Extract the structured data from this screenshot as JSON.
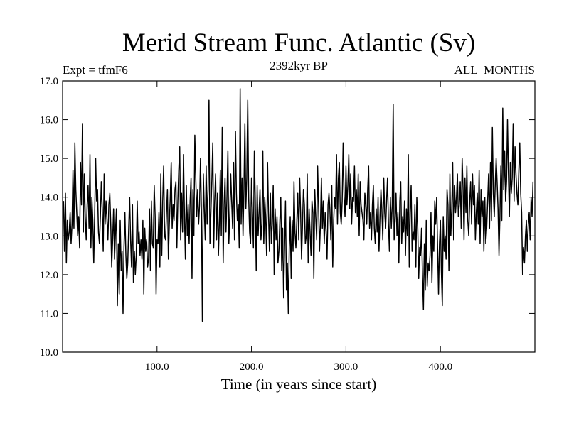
{
  "chart_data": {
    "type": "line",
    "title": "Merid Stream Func. Atlantic (Sv)",
    "subtitle_left": "Expt = tfmF6",
    "subtitle_center": "2392kyr BP",
    "subtitle_right": "ALL_MONTHS",
    "xlabel": "Time (in years since start)",
    "ylabel": "",
    "xlim": [
      0,
      500
    ],
    "ylim": [
      10.0,
      17.0
    ],
    "xticks": [
      100,
      200,
      300,
      400
    ],
    "xtick_labels": [
      "100.0",
      "200.0",
      "300.0",
      "400.0"
    ],
    "yticks": [
      10,
      11,
      12,
      13,
      14,
      15,
      16,
      17
    ],
    "ytick_labels": [
      "10.0",
      "11.0",
      "12.0",
      "13.0",
      "14.0",
      "15.0",
      "16.0",
      "17.0"
    ],
    "series": [
      {
        "name": "Merid Stream Func. Atlantic",
        "x_start": 1,
        "x_step": 1,
        "values": [
          13.9,
          12.6,
          14.1,
          12.3,
          13.4,
          12.9,
          13.1,
          13.6,
          12.8,
          13.3,
          14.7,
          13.2,
          15.4,
          14.2,
          13.6,
          13.0,
          13.5,
          12.7,
          14.9,
          13.8,
          15.9,
          13.1,
          14.6,
          13.5,
          12.9,
          13.8,
          14.3,
          13.2,
          15.1,
          12.7,
          14.0,
          13.4,
          12.3,
          13.6,
          15.0,
          13.9,
          14.2,
          13.1,
          12.8,
          13.5,
          14.4,
          13.7,
          12.6,
          14.6,
          13.3,
          13.9,
          13.4,
          12.9,
          13.8,
          14.1,
          13.3,
          12.2,
          12.9,
          13.7,
          12.4,
          13.1,
          13.7,
          11.2,
          12.8,
          11.5,
          13.4,
          12.1,
          12.6,
          11.0,
          12.7,
          13.6,
          12.5,
          11.9,
          12.3,
          13.2,
          14.0,
          12.9,
          12.2,
          13.8,
          11.8,
          12.6,
          12.0,
          12.5,
          13.9,
          12.8,
          13.1,
          12.5,
          12.9,
          12.4,
          13.4,
          11.5,
          13.2,
          12.6,
          12.9,
          12.2,
          12.4,
          13.7,
          12.1,
          13.9,
          12.8,
          12.7,
          14.3,
          13.5,
          11.5,
          12.9,
          12.8,
          13.6,
          12.2,
          14.6,
          12.5,
          13.9,
          14.8,
          13.0,
          12.9,
          13.6,
          14.2,
          12.4,
          13.3,
          14.0,
          14.9,
          13.2,
          13.8,
          13.4,
          14.2,
          14.4,
          12.7,
          13.9,
          14.7,
          15.3,
          12.9,
          14.1,
          13.1,
          15.1,
          13.6,
          12.4,
          14.3,
          13.0,
          13.8,
          12.8,
          13.9,
          14.5,
          11.9,
          14.2,
          13.0,
          15.6,
          14.5,
          13.5,
          14.2,
          13.3,
          13.8,
          15.0,
          13.6,
          10.8,
          14.6,
          13.7,
          12.9,
          14.8,
          13.3,
          14.2,
          16.5,
          12.8,
          13.6,
          14.4,
          15.4,
          12.7,
          13.9,
          14.6,
          12.9,
          14.1,
          12.5,
          13.4,
          14.7,
          13.0,
          15.8,
          12.3,
          13.8,
          14.5,
          13.1,
          14.0,
          15.2,
          12.8,
          13.5,
          14.6,
          13.9,
          13.2,
          14.9,
          12.9,
          15.7,
          14.1,
          13.4,
          13.8,
          12.7,
          16.8,
          13.3,
          14.5,
          13.0,
          14.2,
          15.9,
          13.7,
          14.5,
          16.5,
          14.0,
          13.1,
          12.8,
          14.5,
          13.6,
          12.7,
          15.2,
          13.9,
          12.1,
          14.3,
          13.0,
          13.6,
          14.2,
          12.9,
          13.3,
          15.2,
          12.8,
          14.0,
          13.5,
          12.5,
          14.9,
          13.6,
          12.6,
          14.1,
          12.8,
          13.3,
          14.3,
          12.0,
          13.7,
          12.9,
          13.5,
          12.3,
          12.6,
          13.4,
          14.0,
          12.1,
          13.2,
          11.4,
          12.7,
          13.9,
          11.6,
          12.3,
          11.0,
          12.7,
          13.5,
          11.9,
          13.4,
          12.6,
          14.4,
          13.1,
          12.7,
          13.4,
          14.1,
          12.9,
          14.5,
          13.6,
          12.4,
          13.3,
          14.2,
          13.8,
          12.8,
          13.0,
          14.6,
          12.3,
          13.7,
          13.1,
          12.5,
          13.9,
          13.6,
          11.9,
          14.2,
          13.5,
          12.9,
          14.8,
          13.8,
          12.6,
          13.3,
          14.5,
          13.2,
          13.9,
          12.8,
          13.6,
          13.1,
          12.4,
          13.8,
          14.1,
          13.7,
          12.9,
          14.3,
          12.2,
          13.4,
          14.0,
          13.7,
          15.1,
          13.3,
          14.5,
          14.9,
          13.6,
          13.3,
          13.9,
          15.4,
          14.0,
          13.5,
          14.8,
          13.8,
          14.3,
          15.1,
          13.7,
          14.6,
          13.3,
          14.0,
          13.9,
          14.8,
          13.6,
          14.2,
          13.5,
          14.6,
          13.0,
          14.4,
          13.8,
          13.6,
          13.4,
          12.9,
          14.1,
          13.8,
          13.3,
          14.2,
          14.8,
          13.2,
          13.6,
          12.9,
          13.8,
          14.3,
          13.2,
          12.8,
          13.7,
          13.1,
          14.0,
          12.6,
          13.5,
          14.2,
          13.7,
          12.9,
          14.5,
          13.6,
          13.2,
          13.9,
          14.5,
          13.3,
          12.6,
          14.0,
          13.2,
          13.8,
          16.4,
          12.9,
          13.4,
          14.1,
          13.0,
          13.6,
          12.3,
          13.9,
          14.4,
          12.8,
          13.5,
          13.1,
          13.9,
          12.5,
          13.7,
          13.0,
          15.1,
          12.2,
          13.6,
          14.3,
          12.6,
          13.1,
          12.9,
          13.8,
          12.2,
          14.0,
          13.2,
          11.9,
          12.7,
          12.5,
          13.2,
          12.0,
          11.1,
          12.8,
          11.6,
          13.4,
          11.7,
          12.3,
          12.1,
          12.5,
          13.6,
          11.8,
          13.0,
          12.6,
          13.9,
          13.3,
          14.0,
          12.7,
          11.5,
          12.8,
          13.4,
          12.1,
          11.2,
          13.5,
          12.6,
          13.0,
          12.4,
          14.2,
          13.8,
          12.1,
          14.6,
          13.0,
          13.7,
          14.9,
          12.9,
          14.3,
          13.6,
          14.0,
          14.6,
          13.5,
          13.8,
          14.4,
          13.2,
          15.0,
          14.2,
          12.9,
          14.5,
          13.6,
          14.8,
          13.4,
          13.0,
          13.9,
          14.4,
          13.3,
          14.6,
          13.8,
          14.3,
          12.9,
          13.6,
          14.1,
          13.3,
          14.7,
          12.8,
          14.2,
          13.5,
          13.9,
          12.6,
          14.0,
          12.8,
          13.2,
          13.9,
          14.6,
          13.2,
          14.9,
          13.4,
          15.8,
          14.1,
          13.5,
          14.3,
          15.0,
          14.4,
          13.7,
          12.5,
          13.5,
          14.8,
          13.4,
          16.3,
          14.2,
          15.2,
          13.9,
          14.4,
          16.0,
          14.6,
          13.5,
          14.9,
          14.1,
          14.5,
          15.9,
          13.9,
          15.3,
          14.6,
          14.1,
          13.8,
          14.7,
          15.4,
          14.1,
          13.6,
          12.0,
          12.7,
          12.3,
          13.0,
          13.4,
          12.6,
          13.3,
          13.6,
          12.9,
          14.0,
          13.5,
          14.4
        ]
      }
    ]
  }
}
